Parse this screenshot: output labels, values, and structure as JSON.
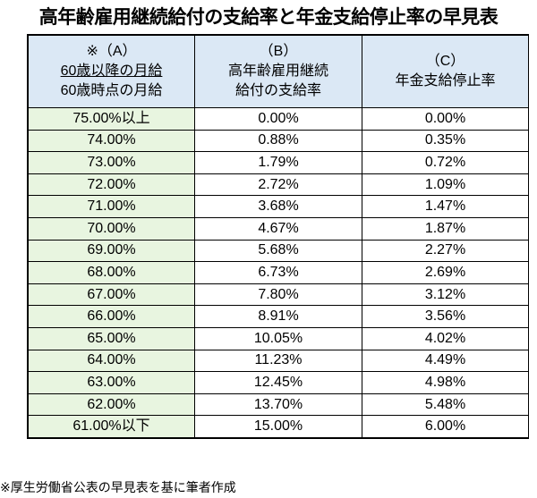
{
  "title": "高年齢雇用継続給付の支給率と年金支給停止率の早見表",
  "header": {
    "col_a": {
      "line1": "※（A）",
      "line2": "60歳以降の月給",
      "line3": "60歳時点の月給"
    },
    "col_b": {
      "line1": "（B）",
      "line2": "高年齢雇用継続",
      "line3": "給付の支給率"
    },
    "col_c": {
      "line1": "（C）",
      "line2": "年金支給停止率"
    }
  },
  "rows": [
    {
      "a": "75.00%以上",
      "b": "0.00%",
      "c": "0.00%"
    },
    {
      "a": "74.00%",
      "b": "0.88%",
      "c": "0.35%"
    },
    {
      "a": "73.00%",
      "b": "1.79%",
      "c": "0.72%"
    },
    {
      "a": "72.00%",
      "b": "2.72%",
      "c": "1.09%"
    },
    {
      "a": "71.00%",
      "b": "3.68%",
      "c": "1.47%"
    },
    {
      "a": "70.00%",
      "b": "4.67%",
      "c": "1.87%"
    },
    {
      "a": "69.00%",
      "b": "5.68%",
      "c": "2.27%"
    },
    {
      "a": "68.00%",
      "b": "6.73%",
      "c": "2.69%"
    },
    {
      "a": "67.00%",
      "b": "7.80%",
      "c": "3.12%"
    },
    {
      "a": "66.00%",
      "b": "8.91%",
      "c": "3.56%"
    },
    {
      "a": "65.00%",
      "b": "10.05%",
      "c": "4.02%"
    },
    {
      "a": "64.00%",
      "b": "11.23%",
      "c": "4.49%"
    },
    {
      "a": "63.00%",
      "b": "12.45%",
      "c": "4.98%"
    },
    {
      "a": "62.00%",
      "b": "13.70%",
      "c": "5.48%"
    },
    {
      "a": "61.00%以下",
      "b": "15.00%",
      "c": "6.00%"
    }
  ],
  "footer": "※厚生労働省公表の早見表を基に筆者作成",
  "colors": {
    "header_bg": "#dbe8f5",
    "col_a_bg": "#e8f5e0",
    "border": "#000000"
  }
}
